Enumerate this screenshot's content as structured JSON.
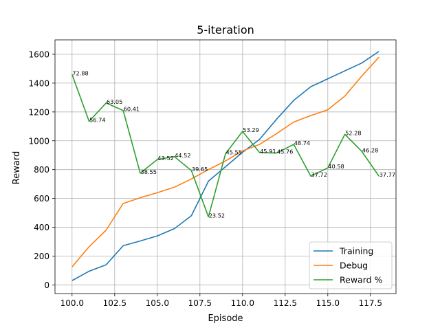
{
  "chart_data": {
    "type": "line",
    "title": "5-iteration",
    "xlabel": "Episode",
    "ylabel": "Reward",
    "x": [
      100,
      101,
      102,
      103,
      104,
      105,
      106,
      107,
      108,
      109,
      110,
      111,
      112,
      113,
      114,
      115,
      116,
      117,
      118
    ],
    "xlim": [
      99,
      119
    ],
    "ylim": [
      -60,
      1700
    ],
    "xticks": [
      "100.0",
      "102.5",
      "105.0",
      "107.5",
      "110.0",
      "112.5",
      "115.0",
      "117.5"
    ],
    "yticks": [
      "0",
      "200",
      "400",
      "600",
      "800",
      "1000",
      "1200",
      "1400",
      "1600"
    ],
    "grid": true,
    "legend_position": "lower-right",
    "series": [
      {
        "name": "Training",
        "color": "#1f77b4",
        "values": [
          30,
          95,
          140,
          272,
          305,
          340,
          390,
          480,
          720,
          820,
          920,
          1010,
          1150,
          1280,
          1375,
          1430,
          1485,
          1540,
          1620
        ]
      },
      {
        "name": "Debug",
        "color": "#ff7f0e",
        "values": [
          125,
          265,
          380,
          565,
          605,
          640,
          678,
          735,
          800,
          860,
          930,
          975,
          1050,
          1130,
          1175,
          1215,
          1310,
          1450,
          1580
        ]
      },
      {
        "name": "Reward %",
        "color": "#2ca02c",
        "values": [
          1460,
          1135,
          1262,
          1210,
          775,
          870,
          890,
          793,
          472,
          910,
          1065,
          918,
          915,
          975,
          755,
          812,
          1045,
          925,
          755
        ],
        "labels": [
          "72.88",
          "56.74",
          "63.05",
          "60.41",
          "38.55",
          "43.52",
          "44.52",
          "39.65",
          "23.52",
          "45.55",
          "53.29",
          "45.91",
          "45.76",
          "48.74",
          "37.72",
          "40.58",
          "52.28",
          "46.28",
          "37.77"
        ]
      }
    ]
  }
}
